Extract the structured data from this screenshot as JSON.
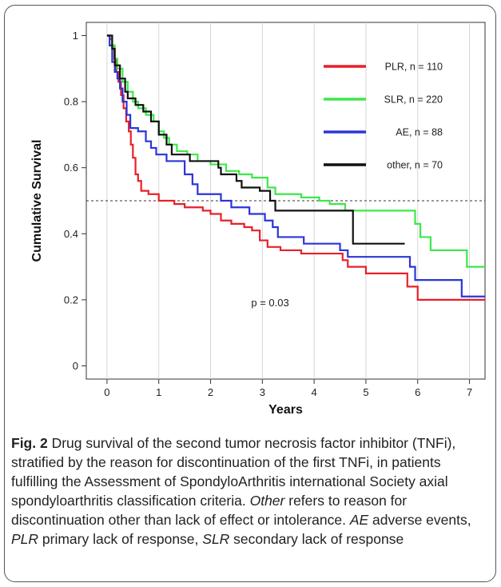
{
  "chart_data": {
    "type": "line",
    "subtype": "step",
    "xlabel": "Years",
    "ylabel": "Cumulative Survival",
    "xlim": [
      -0.4,
      7.3
    ],
    "ylim": [
      -0.04,
      1.04
    ],
    "xticks": [
      0,
      1,
      2,
      3,
      4,
      5,
      6,
      7
    ],
    "yticks": [
      0,
      0.2,
      0.4,
      0.6,
      0.8,
      1
    ],
    "ytick_labels": [
      "0",
      "0.2",
      "0.4",
      "0.6",
      "0.8",
      "1"
    ],
    "grid": "vertical",
    "reference_line": {
      "y": 0.5,
      "style": "dashed"
    },
    "annotation": "p = 0.03",
    "legend_position": "top-right",
    "series": [
      {
        "name": "PLR, n = 110",
        "color": "#e8202a",
        "points": [
          [
            0,
            1
          ],
          [
            0.05,
            1
          ],
          [
            0.05,
            0.99
          ],
          [
            0.1,
            0.97
          ],
          [
            0.14,
            0.93
          ],
          [
            0.18,
            0.89
          ],
          [
            0.22,
            0.86
          ],
          [
            0.27,
            0.82
          ],
          [
            0.32,
            0.78
          ],
          [
            0.37,
            0.74
          ],
          [
            0.42,
            0.71
          ],
          [
            0.46,
            0.67
          ],
          [
            0.5,
            0.63
          ],
          [
            0.55,
            0.58
          ],
          [
            0.6,
            0.56
          ],
          [
            0.66,
            0.53
          ],
          [
            0.8,
            0.52
          ],
          [
            1.0,
            0.5
          ],
          [
            1.3,
            0.49
          ],
          [
            1.5,
            0.48
          ],
          [
            1.85,
            0.47
          ],
          [
            2.0,
            0.46
          ],
          [
            2.2,
            0.44
          ],
          [
            2.4,
            0.43
          ],
          [
            2.65,
            0.42
          ],
          [
            2.8,
            0.41
          ],
          [
            2.95,
            0.38
          ],
          [
            3.1,
            0.36
          ],
          [
            3.35,
            0.35
          ],
          [
            3.75,
            0.34
          ],
          [
            4.55,
            0.32
          ],
          [
            4.65,
            0.3
          ],
          [
            5.0,
            0.28
          ],
          [
            5.8,
            0.24
          ],
          [
            6.0,
            0.2
          ],
          [
            7.3,
            0.2
          ]
        ]
      },
      {
        "name": "SLR, n = 220",
        "color": "#3ce84a",
        "points": [
          [
            0,
            1
          ],
          [
            0.08,
            1
          ],
          [
            0.1,
            0.97
          ],
          [
            0.15,
            0.93
          ],
          [
            0.2,
            0.9
          ],
          [
            0.3,
            0.86
          ],
          [
            0.4,
            0.83
          ],
          [
            0.5,
            0.8
          ],
          [
            0.6,
            0.78
          ],
          [
            0.75,
            0.76
          ],
          [
            0.9,
            0.74
          ],
          [
            1.0,
            0.71
          ],
          [
            1.1,
            0.69
          ],
          [
            1.2,
            0.67
          ],
          [
            1.35,
            0.65
          ],
          [
            1.55,
            0.64
          ],
          [
            1.75,
            0.62
          ],
          [
            2.0,
            0.61
          ],
          [
            2.3,
            0.59
          ],
          [
            2.55,
            0.58
          ],
          [
            2.8,
            0.57
          ],
          [
            3.1,
            0.54
          ],
          [
            3.25,
            0.52
          ],
          [
            3.75,
            0.51
          ],
          [
            4.1,
            0.5
          ],
          [
            4.3,
            0.49
          ],
          [
            4.6,
            0.47
          ],
          [
            5.85,
            0.47
          ],
          [
            5.95,
            0.43
          ],
          [
            6.05,
            0.39
          ],
          [
            6.25,
            0.35
          ],
          [
            6.9,
            0.35
          ],
          [
            6.95,
            0.3
          ],
          [
            7.3,
            0.3
          ]
        ]
      },
      {
        "name": "AE, n = 88",
        "color": "#2b35d8",
        "points": [
          [
            0,
            1
          ],
          [
            0.05,
            1
          ],
          [
            0.05,
            0.97
          ],
          [
            0.1,
            0.92
          ],
          [
            0.15,
            0.89
          ],
          [
            0.2,
            0.87
          ],
          [
            0.25,
            0.84
          ],
          [
            0.3,
            0.8
          ],
          [
            0.38,
            0.76
          ],
          [
            0.45,
            0.72
          ],
          [
            0.6,
            0.71
          ],
          [
            0.75,
            0.68
          ],
          [
            0.85,
            0.66
          ],
          [
            0.95,
            0.64
          ],
          [
            1.15,
            0.62
          ],
          [
            1.5,
            0.58
          ],
          [
            1.65,
            0.55
          ],
          [
            1.75,
            0.52
          ],
          [
            2.2,
            0.5
          ],
          [
            2.4,
            0.48
          ],
          [
            2.75,
            0.46
          ],
          [
            3.05,
            0.44
          ],
          [
            3.2,
            0.42
          ],
          [
            3.3,
            0.39
          ],
          [
            3.8,
            0.37
          ],
          [
            4.5,
            0.35
          ],
          [
            4.65,
            0.33
          ],
          [
            5.85,
            0.3
          ],
          [
            5.95,
            0.26
          ],
          [
            6.25,
            0.26
          ],
          [
            6.75,
            0.26
          ],
          [
            6.85,
            0.21
          ],
          [
            7.3,
            0.21
          ]
        ]
      },
      {
        "name": "other, n = 70",
        "color": "#111111",
        "points": [
          [
            0,
            1
          ],
          [
            0.1,
            1
          ],
          [
            0.1,
            0.96
          ],
          [
            0.15,
            0.91
          ],
          [
            0.25,
            0.87
          ],
          [
            0.35,
            0.83
          ],
          [
            0.4,
            0.81
          ],
          [
            0.55,
            0.79
          ],
          [
            0.7,
            0.77
          ],
          [
            0.85,
            0.74
          ],
          [
            1.0,
            0.7
          ],
          [
            1.15,
            0.67
          ],
          [
            1.25,
            0.64
          ],
          [
            1.55,
            0.64
          ],
          [
            1.6,
            0.62
          ],
          [
            2.15,
            0.6
          ],
          [
            2.2,
            0.58
          ],
          [
            2.5,
            0.56
          ],
          [
            2.6,
            0.54
          ],
          [
            2.95,
            0.53
          ],
          [
            3.15,
            0.5
          ],
          [
            3.25,
            0.47
          ],
          [
            4.7,
            0.47
          ],
          [
            4.75,
            0.37
          ],
          [
            5.75,
            0.37
          ]
        ]
      }
    ]
  },
  "caption": {
    "figure_label": "Fig. 2",
    "segments": [
      {
        "text": " Drug survival of the second tumor necrosis factor inhibitor (TNFi), stratified by the reason for discontinuation of the first TNFi, in patients fulfilling the Assessment of SpondyloArthritis international Society axial spondyloarthritis classification criteria. ",
        "italic": false
      },
      {
        "text": "Other",
        "italic": true
      },
      {
        "text": " refers to reason for discontinuation other than lack of effect or intolerance. ",
        "italic": false
      },
      {
        "text": "AE",
        "italic": true
      },
      {
        "text": " adverse events, ",
        "italic": false
      },
      {
        "text": "PLR",
        "italic": true
      },
      {
        "text": " primary lack of response, ",
        "italic": false
      },
      {
        "text": "SLR",
        "italic": true
      },
      {
        "text": " secondary lack of response",
        "italic": false
      }
    ]
  }
}
